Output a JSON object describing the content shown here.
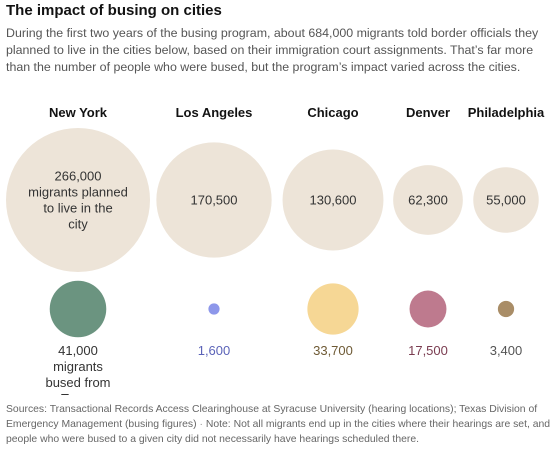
{
  "title": "The impact of busing on cities",
  "description": "During the first two years of the busing program, about 684,000 migrants told border officials they planned to live in the cities below, based on their immigration court assignments. That’s far more than the number of people who were bused, but the program’s impact varied across the cities.",
  "chart_data": {
    "type": "bubble",
    "categories": [
      "New York",
      "Los Angeles",
      "Chicago",
      "Denver",
      "Philadelphia"
    ],
    "series": [
      {
        "values": [
          266000,
          170500,
          130600,
          62300,
          55000
        ],
        "labels": [
          "266,000",
          "170,500",
          "130,600",
          "62,300",
          "55,000"
        ],
        "first_label_suffix": "migrants planned to live in the city",
        "color": "#ede4d8"
      },
      {
        "values": [
          41000,
          1600,
          33700,
          17500,
          3400
        ],
        "labels": [
          "41,000",
          "1,600",
          "33,700",
          "17,500",
          "3,400"
        ],
        "first_label_suffix": "migrants bused from Texas",
        "colors": [
          "#6b9480",
          "#8d97ea",
          "#f6d795",
          "#be7a8e",
          "#a98d67"
        ],
        "label_colors": [
          "#333333",
          "#5b63b8",
          "#6e5a35",
          "#7a3c50",
          "#555555"
        ]
      }
    ]
  },
  "notes": {
    "sources": "Sources: Transactional Records Access Clearinghouse at Syracuse University (hearing locations); Texas Division of Emergency Management (busing figures)",
    "separator": "·",
    "note": "Note: Not all migrants end up in the cities where their hearings are set, and people who were bused to a given city did not necessarily have hearings scheduled there."
  }
}
